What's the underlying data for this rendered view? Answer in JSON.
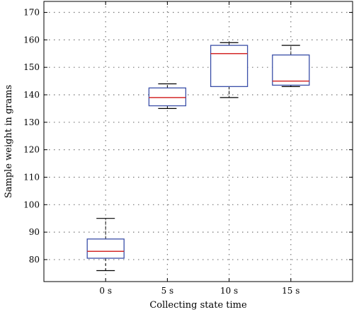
{
  "chart_data": {
    "type": "box",
    "xlabel": "Collecting state time",
    "ylabel": "Sample weight in grams",
    "categories": [
      "0 s",
      "5 s",
      "10 s",
      "15 s"
    ],
    "yticks": [
      80,
      90,
      100,
      110,
      120,
      130,
      140,
      150,
      160,
      170
    ],
    "ylim": [
      72,
      174
    ],
    "grid": true,
    "boxes": [
      {
        "category": "0 s",
        "whisker_low": 76,
        "q1": 80.5,
        "median": 83,
        "q3": 87.5,
        "whisker_high": 95
      },
      {
        "category": "5 s",
        "whisker_low": 135,
        "q1": 136,
        "median": 139,
        "q3": 142.5,
        "whisker_high": 144
      },
      {
        "category": "10 s",
        "whisker_low": 139,
        "q1": 143,
        "median": 155,
        "q3": 158,
        "whisker_high": 159
      },
      {
        "category": "15 s",
        "whisker_low": 143,
        "q1": 143.5,
        "median": 145,
        "q3": 154.5,
        "whisker_high": 158
      }
    ],
    "colors": {
      "box": "#3a4fa8",
      "median": "#d42a2a",
      "grid": "#777777",
      "frame": "#000000"
    }
  }
}
